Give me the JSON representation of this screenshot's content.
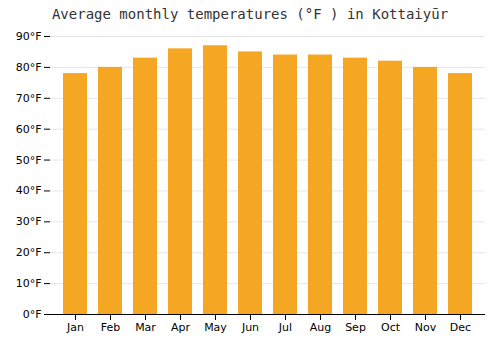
{
  "chart_data": {
    "type": "bar",
    "title": "Average monthly temperatures (°F ) in Kottaiyūr",
    "categories": [
      "Jan",
      "Feb",
      "Mar",
      "Apr",
      "May",
      "Jun",
      "Jul",
      "Aug",
      "Sep",
      "Oct",
      "Nov",
      "Dec"
    ],
    "values": [
      78,
      80,
      83,
      86,
      87,
      85,
      84,
      84,
      83,
      82,
      80,
      78
    ],
    "color": "#F5A623",
    "ylim": [
      0,
      90
    ],
    "yticks": [
      {
        "value": 0,
        "label": "0°F"
      },
      {
        "value": 10,
        "label": "10°F"
      },
      {
        "value": 20,
        "label": "20°F"
      },
      {
        "value": 30,
        "label": "30°F"
      },
      {
        "value": 40,
        "label": "40°F"
      },
      {
        "value": 50,
        "label": "50°F"
      },
      {
        "value": 60,
        "label": "60°F"
      },
      {
        "value": 70,
        "label": "70°F"
      },
      {
        "value": 80,
        "label": "80°F"
      },
      {
        "value": 90,
        "label": "90°F"
      }
    ],
    "grid": true
  }
}
